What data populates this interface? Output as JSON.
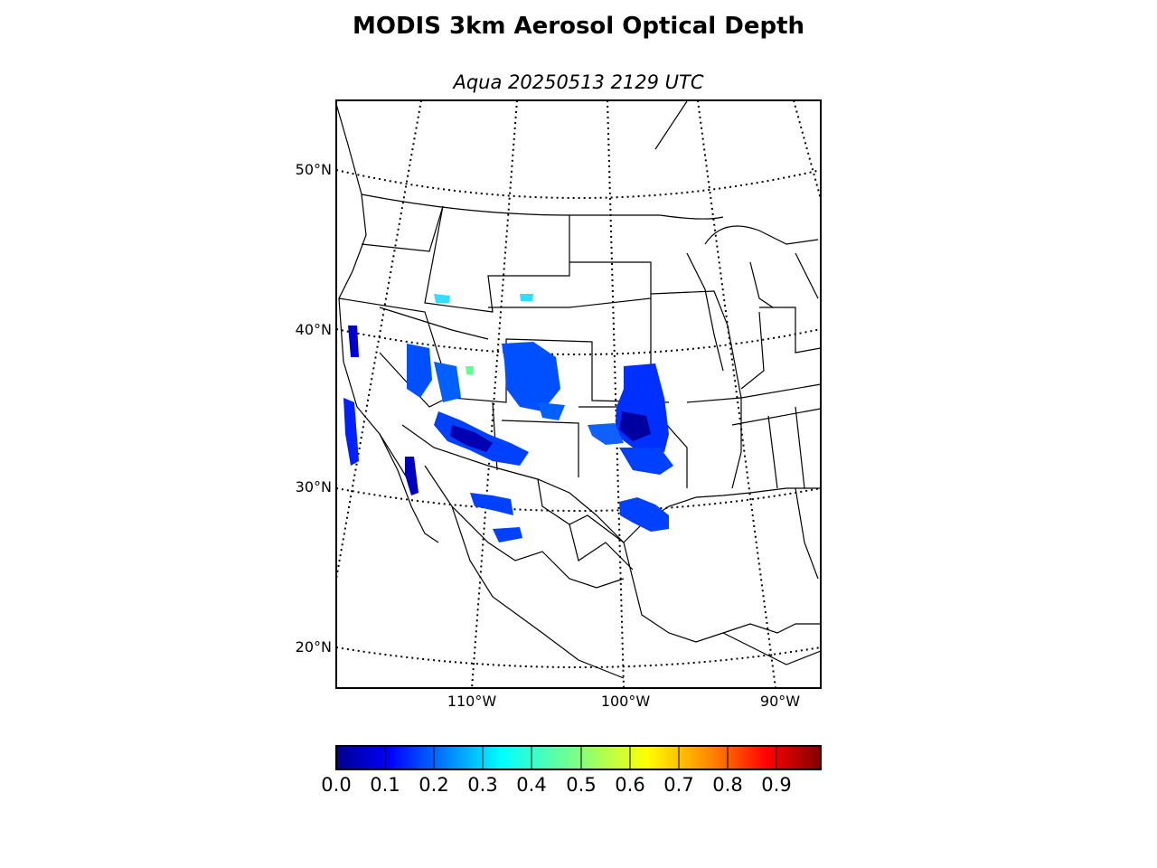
{
  "title": "MODIS 3km Aerosol Optical Depth",
  "subtitle": "Aqua 20250513 2129 UTC",
  "map": {
    "lat_labels": [
      "50°N",
      "40°N",
      "30°N",
      "20°N"
    ],
    "lon_labels": [
      "110°W",
      "100°W",
      "90°W"
    ],
    "colormap": "jet",
    "background": "#ffffff",
    "outline_color": "#000000"
  },
  "colorbar": {
    "min": 0.0,
    "max": 1.0,
    "tick_labels": [
      "0.0",
      "0.1",
      "0.2",
      "0.3",
      "0.4",
      "0.5",
      "0.6",
      "0.7",
      "0.8",
      "0.9"
    ],
    "colors": [
      "#00008f",
      "#0000ff",
      "#0080ff",
      "#00ffff",
      "#80ff80",
      "#ffff00",
      "#ff8000",
      "#ff0000",
      "#800000"
    ]
  }
}
